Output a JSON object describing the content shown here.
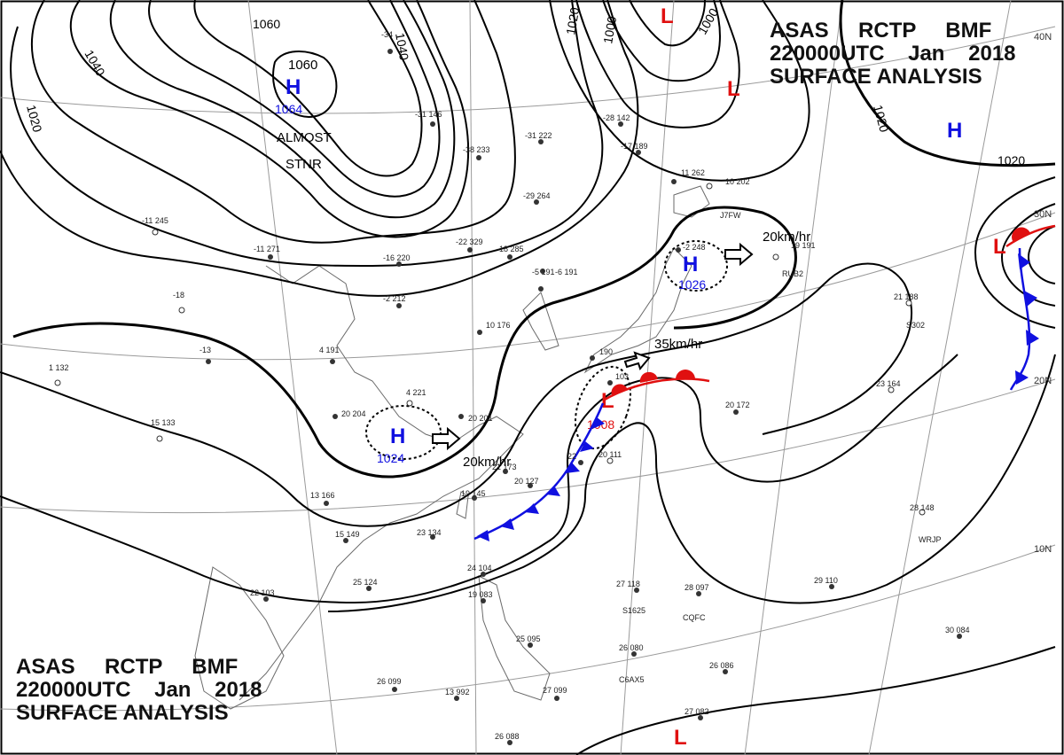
{
  "header": {
    "line1": [
      "ASAS",
      "RCTP",
      "BMF"
    ],
    "line2": [
      "220000UTC",
      "Jan",
      "2018"
    ],
    "line3": "SURFACE ANALYSIS"
  },
  "latitude_labels": [
    "40N",
    "30N",
    "20N",
    "10N"
  ],
  "colors": {
    "isobar": "#000000",
    "high": "#1010e0",
    "low": "#e01010",
    "cold_front": "#1010e0",
    "warm_front": "#e01010",
    "grid": "#888888"
  },
  "isobar_labels": [
    "1060",
    "1040",
    "1040",
    "1020",
    "1020",
    "1000",
    "1000",
    "1020",
    "1020"
  ],
  "pressure_systems": [
    {
      "type": "H",
      "value": "1064"
    },
    {
      "type": "H",
      "value": "1026"
    },
    {
      "type": "H",
      "value": "1024"
    },
    {
      "type": "L",
      "value": "1008"
    },
    {
      "type": "L",
      "value": ""
    },
    {
      "type": "L",
      "value": ""
    },
    {
      "type": "L",
      "value": ""
    },
    {
      "type": "H",
      "value": ""
    },
    {
      "type": "L",
      "value": ""
    }
  ],
  "extra_labels": {
    "inner_1060": "1060",
    "almost": "ALMOST",
    "stnr": "STNR"
  },
  "movements": [
    "20km/hr",
    "35km/hr",
    "20km/hr"
  ],
  "stations": [
    "-34",
    "-31 146",
    "-31 222",
    "-38 233",
    "-28 142",
    "-17 189",
    "-29 264",
    "-22 329",
    "-18 285",
    "-16 220",
    "-5 191",
    "-2 212",
    "-11 271",
    "-18",
    "-11 245",
    "-13",
    "1 132",
    "15 133",
    "4 191",
    "4 221",
    "20 204",
    "20 201",
    "13 166",
    "15 149",
    "23 134",
    "25 124",
    "22 103",
    "24 104",
    "19 083",
    "26 099",
    "13 992",
    "27 099",
    "26 088",
    "25 095",
    "19 145",
    "20 127",
    "21 173",
    "20 111",
    "22",
    "27 118",
    "28 097",
    "26 080",
    "26 086",
    "27 082",
    "30 084",
    "29 110",
    "28 148",
    "20 172",
    "23 164",
    "21 188",
    "19 191",
    "10 202",
    "11 262",
    "10 176",
    "-6 191",
    "-2 248",
    "190",
    "103",
    "J7FW",
    "WRJP",
    "CQFC",
    "C6AX5",
    "S1625",
    "S302",
    "RUB2"
  ]
}
